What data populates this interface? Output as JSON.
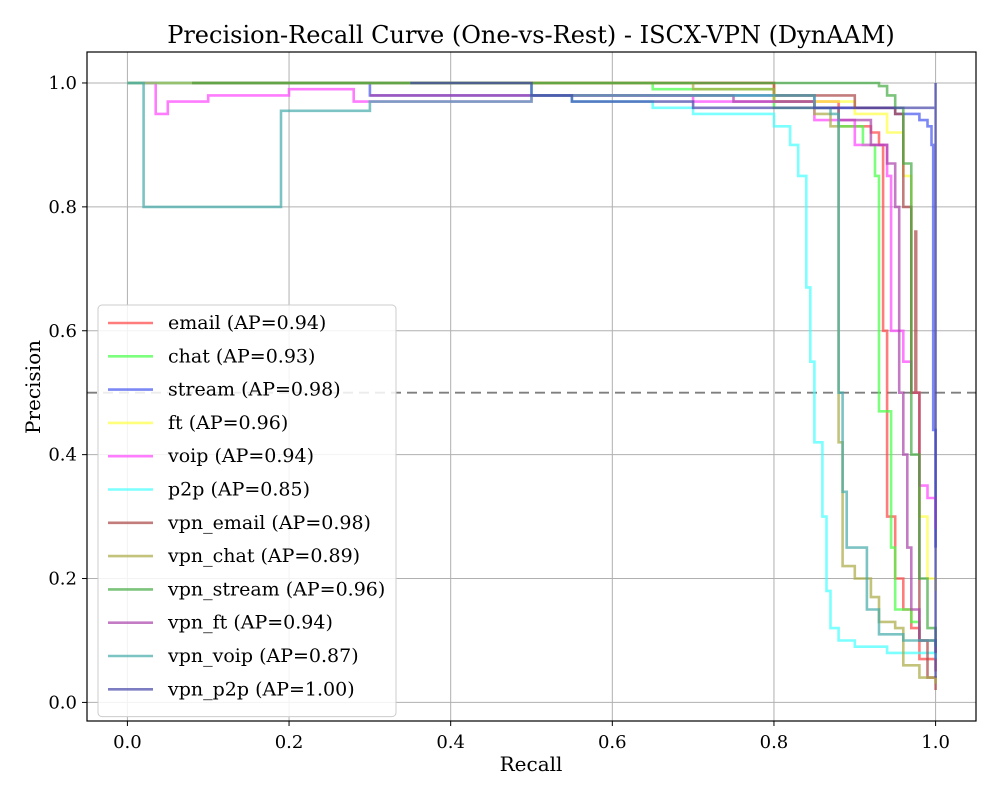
{
  "chart_data": {
    "type": "line",
    "title": "Precision-Recall Curve (One-vs-Rest) - ISCX-VPN (DynAAM)",
    "xlabel": "Recall",
    "ylabel": "Precision",
    "xlim": [
      -0.05,
      1.05
    ],
    "ylim": [
      -0.03,
      1.05
    ],
    "xticks": [
      0.0,
      0.2,
      0.4,
      0.6,
      0.8,
      1.0
    ],
    "xtick_labels": [
      "0.0",
      "0.2",
      "0.4",
      "0.6",
      "0.8",
      "1.0"
    ],
    "yticks": [
      0.0,
      0.2,
      0.4,
      0.6,
      0.8,
      1.0
    ],
    "ytick_labels": [
      "0.0",
      "0.2",
      "0.4",
      "0.6",
      "0.8",
      "1.0"
    ],
    "grid": true,
    "baseline": {
      "y": 0.5,
      "style": "dashed",
      "color": "#7f7f7f"
    },
    "legend_position": "lower-left",
    "series": [
      {
        "name": "email",
        "legend": "email (AP=0.94)",
        "color": "#ff4444",
        "points": [
          [
            0,
            1.0
          ],
          [
            0.6,
            1.0
          ],
          [
            0.8,
            0.97
          ],
          [
            0.88,
            0.93
          ],
          [
            0.92,
            0.92
          ],
          [
            0.93,
            0.9
          ],
          [
            0.935,
            0.6
          ],
          [
            0.94,
            0.3
          ],
          [
            0.95,
            0.2
          ],
          [
            0.96,
            0.15
          ],
          [
            0.97,
            0.12
          ],
          [
            0.98,
            0.07
          ],
          [
            1.0,
            0.05
          ]
        ]
      },
      {
        "name": "chat",
        "legend": "chat (AP=0.93)",
        "color": "#44ff44",
        "points": [
          [
            0,
            1.0
          ],
          [
            0.5,
            1.0
          ],
          [
            0.65,
            0.99
          ],
          [
            0.8,
            0.96
          ],
          [
            0.88,
            0.93
          ],
          [
            0.91,
            0.9
          ],
          [
            0.925,
            0.85
          ],
          [
            0.93,
            0.47
          ],
          [
            0.94,
            0.47
          ],
          [
            0.945,
            0.25
          ],
          [
            0.95,
            0.15
          ],
          [
            0.97,
            0.13
          ],
          [
            0.98,
            0.1
          ],
          [
            1.0,
            0.09
          ]
        ]
      },
      {
        "name": "stream",
        "legend": "stream (AP=0.98)",
        "color": "#4455ee",
        "points": [
          [
            0,
            1.0
          ],
          [
            0.25,
            1.0
          ],
          [
            0.3,
            0.98
          ],
          [
            0.6,
            0.98
          ],
          [
            0.85,
            0.96
          ],
          [
            0.95,
            0.95
          ],
          [
            0.98,
            0.94
          ],
          [
            0.99,
            0.93
          ],
          [
            0.995,
            0.9
          ],
          [
            0.997,
            0.44
          ],
          [
            1.0,
            0.25
          ]
        ]
      },
      {
        "name": "ft",
        "legend": "ft (AP=0.96)",
        "color": "#ffff44",
        "points": [
          [
            0,
            1.0
          ],
          [
            0.6,
            1.0
          ],
          [
            0.8,
            0.97
          ],
          [
            0.9,
            0.95
          ],
          [
            0.94,
            0.92
          ],
          [
            0.96,
            0.85
          ],
          [
            0.97,
            0.5
          ],
          [
            0.98,
            0.3
          ],
          [
            0.99,
            0.2
          ],
          [
            1.0,
            0.18
          ]
        ]
      },
      {
        "name": "voip",
        "legend": "voip (AP=0.94)",
        "color": "#ff44ff",
        "points": [
          [
            0.02,
            1.0
          ],
          [
            0.035,
            0.95
          ],
          [
            0.05,
            0.97
          ],
          [
            0.1,
            0.98
          ],
          [
            0.2,
            0.99
          ],
          [
            0.27,
            0.99
          ],
          [
            0.28,
            0.97
          ],
          [
            0.5,
            0.98
          ],
          [
            0.7,
            0.97
          ],
          [
            0.85,
            0.94
          ],
          [
            0.9,
            0.9
          ],
          [
            0.94,
            0.85
          ],
          [
            0.945,
            0.6
          ],
          [
            0.96,
            0.55
          ],
          [
            0.97,
            0.5
          ],
          [
            0.98,
            0.35
          ],
          [
            0.99,
            0.33
          ],
          [
            1.0,
            0.28
          ]
        ]
      },
      {
        "name": "p2p",
        "legend": "p2p (AP=0.85)",
        "color": "#44ffff",
        "points": [
          [
            0,
            1.0
          ],
          [
            0.4,
            1.0
          ],
          [
            0.5,
            0.98
          ],
          [
            0.55,
            0.97
          ],
          [
            0.6,
            0.97
          ],
          [
            0.65,
            0.96
          ],
          [
            0.7,
            0.95
          ],
          [
            0.78,
            0.95
          ],
          [
            0.8,
            0.93
          ],
          [
            0.82,
            0.9
          ],
          [
            0.83,
            0.85
          ],
          [
            0.84,
            0.67
          ],
          [
            0.845,
            0.55
          ],
          [
            0.85,
            0.42
          ],
          [
            0.86,
            0.3
          ],
          [
            0.865,
            0.18
          ],
          [
            0.87,
            0.12
          ],
          [
            0.88,
            0.1
          ],
          [
            0.9,
            0.09
          ],
          [
            0.94,
            0.08
          ],
          [
            1.0,
            0.07
          ]
        ]
      },
      {
        "name": "vpn_email",
        "legend": "vpn_email (AP=0.98)",
        "color": "#aa4444",
        "points": [
          [
            0.08,
            1.0
          ],
          [
            0.6,
            1.0
          ],
          [
            0.8,
            0.98
          ],
          [
            0.9,
            0.96
          ],
          [
            0.95,
            0.95
          ],
          [
            0.96,
            0.8
          ],
          [
            0.97,
            0.5
          ],
          [
            0.975,
            0.76
          ],
          [
            0.976,
            0.5
          ],
          [
            0.98,
            0.1
          ],
          [
            0.99,
            0.04
          ],
          [
            1.0,
            0.02
          ]
        ]
      },
      {
        "name": "vpn_chat",
        "legend": "vpn_chat (AP=0.89)",
        "color": "#aaaa44",
        "points": [
          [
            0,
            1.0
          ],
          [
            0.55,
            1.0
          ],
          [
            0.7,
            0.99
          ],
          [
            0.8,
            0.97
          ],
          [
            0.85,
            0.95
          ],
          [
            0.87,
            0.93
          ],
          [
            0.88,
            0.42
          ],
          [
            0.885,
            0.22
          ],
          [
            0.9,
            0.2
          ],
          [
            0.92,
            0.17
          ],
          [
            0.93,
            0.13
          ],
          [
            0.95,
            0.12
          ],
          [
            0.96,
            0.06
          ],
          [
            0.98,
            0.04
          ],
          [
            1.0,
            0.03
          ]
        ]
      },
      {
        "name": "vpn_stream",
        "legend": "vpn_stream (AP=0.96)",
        "color": "#44aa44",
        "points": [
          [
            0.08,
            1.0
          ],
          [
            0.6,
            1.0
          ],
          [
            0.9,
            1.0
          ],
          [
            0.93,
            0.995
          ],
          [
            0.94,
            0.98
          ],
          [
            0.95,
            0.96
          ],
          [
            0.96,
            0.87
          ],
          [
            0.97,
            0.4
          ],
          [
            0.98,
            0.2
          ],
          [
            0.99,
            0.12
          ],
          [
            1.0,
            0.08
          ]
        ]
      },
      {
        "name": "vpn_ft",
        "legend": "vpn_ft (AP=0.94)",
        "color": "#aa44aa",
        "points": [
          [
            0.3,
            0.98
          ],
          [
            0.6,
            0.98
          ],
          [
            0.75,
            0.97
          ],
          [
            0.85,
            0.96
          ],
          [
            0.88,
            0.94
          ],
          [
            0.92,
            0.9
          ],
          [
            0.94,
            0.87
          ],
          [
            0.95,
            0.8
          ],
          [
            0.955,
            0.5
          ],
          [
            0.96,
            0.4
          ],
          [
            0.965,
            0.25
          ],
          [
            0.97,
            0.15
          ],
          [
            0.98,
            0.1
          ],
          [
            1.0,
            0.08
          ]
        ]
      },
      {
        "name": "vpn_voip",
        "legend": "vpn_voip (AP=0.87)",
        "color": "#44aaaa",
        "points": [
          [
            0,
            1.0
          ],
          [
            0.02,
            0.8
          ],
          [
            0.19,
            0.955
          ],
          [
            0.3,
            0.97
          ],
          [
            0.5,
            0.98
          ],
          [
            0.8,
            0.98
          ],
          [
            0.85,
            0.96
          ],
          [
            0.87,
            0.95
          ],
          [
            0.88,
            0.5
          ],
          [
            0.885,
            0.34
          ],
          [
            0.89,
            0.25
          ],
          [
            0.91,
            0.25
          ],
          [
            0.915,
            0.15
          ],
          [
            0.93,
            0.11
          ],
          [
            0.96,
            0.1
          ],
          [
            0.97,
            0.1
          ],
          [
            1.0,
            0.09
          ]
        ]
      },
      {
        "name": "vpn_p2p",
        "legend": "vpn_p2p (AP=1.00)",
        "color": "#4444aa",
        "points": [
          [
            0.35,
            1.0
          ],
          [
            0.5,
            0.98
          ],
          [
            0.55,
            0.97
          ],
          [
            0.7,
            0.96
          ],
          [
            0.8,
            0.96
          ],
          [
            0.9,
            0.96
          ],
          [
            0.99,
            0.96
          ],
          [
            1.0,
            0.96
          ],
          [
            1.0,
            0.04
          ],
          [
            1.0,
            1.0
          ]
        ]
      }
    ]
  }
}
